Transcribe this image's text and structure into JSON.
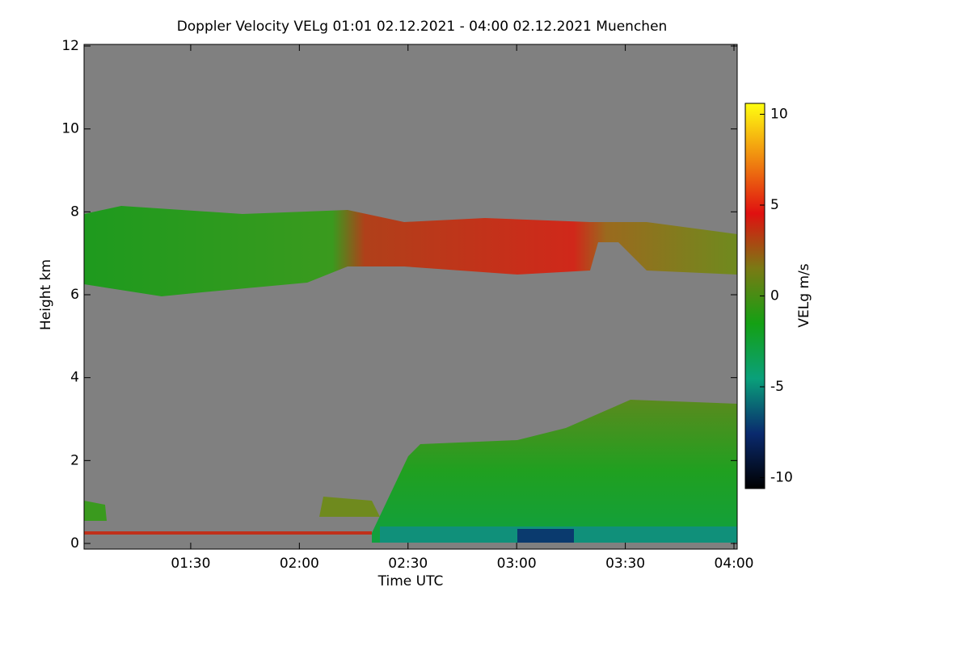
{
  "chart_data": {
    "type": "heatmap",
    "title": "Doppler Velocity VELg   01:01 02.12.2021 - 04:00 02.12.2021 Muenchen",
    "x_label": "Time UTC",
    "y_label": "Height km",
    "colorbar_label": "VELg m/s",
    "xlim": [
      61,
      240
    ],
    "xticks": [
      {
        "value": 90,
        "label": "01:30"
      },
      {
        "value": 120,
        "label": "02:00"
      },
      {
        "value": 150,
        "label": "02:30"
      },
      {
        "value": 180,
        "label": "03:00"
      },
      {
        "value": 210,
        "label": "03:30"
      },
      {
        "value": 240,
        "label": "04:00"
      }
    ],
    "ylim": [
      0,
      12
    ],
    "yticks": [
      0,
      2,
      4,
      6,
      8,
      10,
      12
    ],
    "clim": [
      -10.6,
      10.6
    ],
    "cticks": [
      -10,
      -5,
      0,
      5,
      10
    ],
    "colormap": [
      "#000000",
      "#0a2a6e",
      "#0aa07a",
      "#14a014",
      "#7a7a14",
      "#e01010",
      "#f08a10",
      "#ffff10"
    ],
    "background": "#808080"
  }
}
